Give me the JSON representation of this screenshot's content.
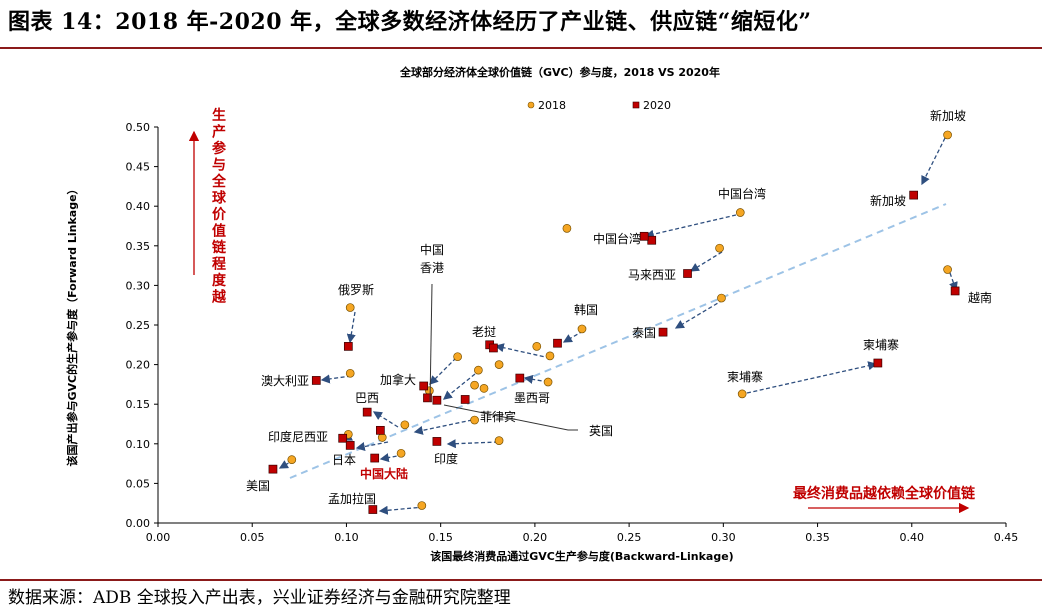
{
  "figure_title": "图表 14：2018 年-2020 年，全球多数经济体经历了产业链、供应链“缩短化”",
  "source": "数据来源：ADB 全球投入产出表，兴业证券经济与金融研究院整理",
  "colors": {
    "s2018": "#F5A623",
    "s2020": "#C00000",
    "arrow": "#2F4F7F",
    "trend": "#9DC3E6",
    "red_text": "#C00000"
  },
  "chart_data": {
    "type": "scatter",
    "title": "全球部分经济体全球价值链（GVC）参与度，2018 VS 2020年",
    "xlabel": "该国最终消费品通过GVC生产参与度(Backward-Linkage)",
    "ylabel": "该国产出参与GVC的生产参与度（Forward Linkage）",
    "xlim": [
      0.0,
      0.45
    ],
    "ylim": [
      0.0,
      0.5
    ],
    "x_ticks": [
      "0.00",
      "0.05",
      "0.10",
      "0.15",
      "0.20",
      "0.25",
      "0.30",
      "0.35",
      "0.40",
      "0.45"
    ],
    "y_ticks": [
      "0.00",
      "0.05",
      "0.10",
      "0.15",
      "0.20",
      "0.25",
      "0.30",
      "0.35",
      "0.40",
      "0.45",
      "0.50"
    ],
    "legend": [
      "2018",
      "2020"
    ],
    "legend_position": "top-center",
    "annotation_vertical": "生产参与全球价值链程度越",
    "annotation_horizontal": "最终消费品越依赖全球价值链",
    "series": [
      {
        "name": "2018",
        "points": [
          [
            0.419,
            0.49
          ],
          [
            0.309,
            0.392
          ],
          [
            0.298,
            0.347
          ],
          [
            0.419,
            0.32
          ],
          [
            0.299,
            0.284
          ],
          [
            0.225,
            0.245
          ],
          [
            0.217,
            0.372
          ],
          [
            0.102,
            0.272
          ],
          [
            0.102,
            0.189
          ],
          [
            0.144,
            0.167
          ],
          [
            0.159,
            0.21
          ],
          [
            0.201,
            0.223
          ],
          [
            0.208,
            0.211
          ],
          [
            0.181,
            0.2
          ],
          [
            0.17,
            0.193
          ],
          [
            0.168,
            0.174
          ],
          [
            0.173,
            0.17
          ],
          [
            0.207,
            0.178
          ],
          [
            0.168,
            0.13
          ],
          [
            0.181,
            0.104
          ],
          [
            0.131,
            0.124
          ],
          [
            0.119,
            0.108
          ],
          [
            0.101,
            0.112
          ],
          [
            0.129,
            0.088
          ],
          [
            0.071,
            0.08
          ],
          [
            0.14,
            0.022
          ],
          [
            0.31,
            0.163
          ]
        ]
      },
      {
        "name": "2020",
        "points": [
          [
            0.401,
            0.414
          ],
          [
            0.262,
            0.357
          ],
          [
            0.258,
            0.362
          ],
          [
            0.281,
            0.315
          ],
          [
            0.423,
            0.293
          ],
          [
            0.268,
            0.241
          ],
          [
            0.212,
            0.227
          ],
          [
            0.176,
            0.225
          ],
          [
            0.178,
            0.221
          ],
          [
            0.101,
            0.223
          ],
          [
            0.084,
            0.18
          ],
          [
            0.141,
            0.173
          ],
          [
            0.143,
            0.158
          ],
          [
            0.148,
            0.155
          ],
          [
            0.163,
            0.156
          ],
          [
            0.192,
            0.183
          ],
          [
            0.111,
            0.14
          ],
          [
            0.098,
            0.107
          ],
          [
            0.118,
            0.117
          ],
          [
            0.148,
            0.103
          ],
          [
            0.102,
            0.098
          ],
          [
            0.115,
            0.082
          ],
          [
            0.061,
            0.068
          ],
          [
            0.114,
            0.017
          ],
          [
            0.382,
            0.202
          ]
        ]
      }
    ],
    "labels": [
      "新加坡",
      "新加坡",
      "中国台湾",
      "中国台湾",
      "马来西亚",
      "越南",
      "泰国",
      "韩国",
      "老挝",
      "中国",
      "香港",
      "俄罗斯",
      "澳大利亚",
      "加拿大",
      "巴西",
      "墨西哥",
      "菲律宾",
      "英国",
      "印度尼西亚",
      "日本",
      "印度",
      "中国大陆",
      "美国",
      "孟加拉国",
      "柬埔寨",
      "柬埔寨"
    ]
  }
}
